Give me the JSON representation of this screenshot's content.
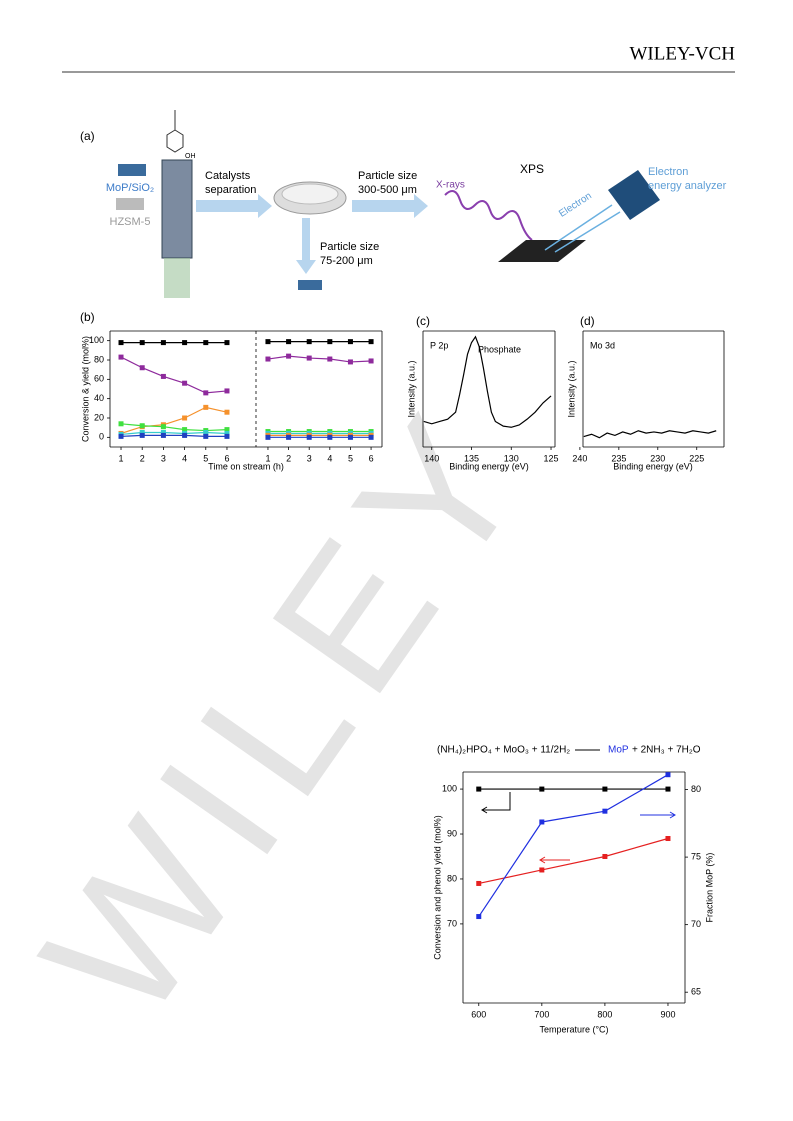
{
  "header": {
    "publisher": "WILEY-VCH"
  },
  "watermark": "WILEY",
  "figure_a": {
    "label": "(a)",
    "catalyst": "MoP/SiO₂",
    "zeolite": "HZSM-5",
    "oh": "OH",
    "step1": [
      "Catalysts",
      "separation"
    ],
    "step2": [
      "Particle size",
      "300-500 μm"
    ],
    "step3": [
      "Particle size",
      "75-200 μm"
    ],
    "xps": "XPS",
    "xrays": "X-rays",
    "electron": "Electron",
    "analyzer": [
      "Electron",
      "energy analyzer"
    ]
  },
  "equation": {
    "reactants": "(NH₄)₂HPO₄ + MoO₃ + 11/2H₂",
    "product": "MoP",
    "rest": "+ 2NH₃ + 7H₂O"
  },
  "chart_data": [
    {
      "type": "line",
      "panel": "(b)",
      "ylabel": "Conversion & yield (mol%)",
      "xlabel": "Time on stream (h)",
      "markers": true,
      "x": [
        1,
        2,
        3,
        4,
        5,
        6
      ],
      "xlim": [
        0.48,
        7.37
      ],
      "xticks": [
        1,
        2,
        3,
        4,
        5,
        6
      ],
      "ylim": [
        -10,
        110
      ],
      "yticks": [
        0,
        20,
        40,
        60,
        80,
        100
      ],
      "series": [
        {
          "color": "#000000",
          "values": [
            98,
            98,
            98,
            98,
            98,
            98
          ]
        },
        {
          "color": "#8e2a9c",
          "values": [
            83,
            72,
            63,
            56,
            46,
            48
          ]
        },
        {
          "color": "#f5912c",
          "values": [
            4,
            11,
            13,
            20,
            31,
            26
          ]
        },
        {
          "color": "#3fe03f",
          "values": [
            14,
            12,
            11,
            8,
            7,
            8
          ]
        },
        {
          "color": "#36cccc",
          "values": [
            3,
            5,
            5,
            4,
            5,
            4
          ]
        },
        {
          "color": "#2040c0",
          "values": [
            1,
            2,
            2,
            2,
            1,
            1
          ]
        }
      ]
    },
    {
      "type": "line",
      "markers": true,
      "x": [
        1,
        2,
        3,
        4,
        5,
        6
      ],
      "xlim": [
        0.42,
        6.53
      ],
      "xticks": [
        1,
        2,
        3,
        4,
        5,
        6
      ],
      "ylim": [
        -10,
        110
      ],
      "series": [
        {
          "color": "#000000",
          "values": [
            99,
            99,
            99,
            99,
            99,
            99
          ]
        },
        {
          "color": "#8e2a9c",
          "values": [
            81,
            84,
            82,
            81,
            78,
            79
          ]
        },
        {
          "color": "#3fe03f",
          "values": [
            6,
            6,
            6,
            6,
            6,
            6
          ]
        },
        {
          "color": "#36cccc",
          "values": [
            4,
            4,
            4,
            4,
            4,
            4
          ]
        },
        {
          "color": "#f5912c",
          "values": [
            2,
            2,
            2,
            2,
            2,
            2
          ]
        },
        {
          "color": "#2040c0",
          "values": [
            0,
            0,
            0,
            0,
            0,
            0
          ]
        }
      ]
    },
    {
      "type": "line",
      "panel": "(c)",
      "ylabel": "Intensity (a.u.)",
      "xlabel": "Binding energy (eV)",
      "annotations": [
        "P 2p",
        "Phosphate"
      ],
      "x": [
        141,
        140,
        139,
        138,
        137,
        136.5,
        136,
        135.5,
        135,
        134.5,
        134,
        133.5,
        133,
        132.5,
        132,
        131,
        130,
        129,
        128,
        127,
        126,
        125
      ],
      "xlim": [
        141.1,
        124.5
      ],
      "xticks": [
        140,
        135,
        130,
        125
      ],
      "ylim": [
        0,
        100
      ],
      "series": [
        {
          "color": "#000000",
          "values": [
            22,
            20,
            22,
            24,
            30,
            45,
            62,
            80,
            90,
            95,
            86,
            68,
            48,
            30,
            22,
            18,
            17,
            19,
            24,
            30,
            38,
            44
          ]
        }
      ]
    },
    {
      "type": "line",
      "panel": "(d)",
      "ylabel": "Intensity (a.u.)",
      "xlabel": "Binding energy (eV)",
      "annotations": [
        "Mo 3d"
      ],
      "x": [
        239.5,
        238.5,
        237.5,
        236.5,
        235.5,
        234.5,
        233.5,
        232.5,
        231.5,
        230.5,
        229.5,
        228.5,
        227.5,
        226.5,
        225.5,
        224.5,
        223.5,
        222.5
      ],
      "xlim": [
        239.6,
        221.5
      ],
      "xticks": [
        240,
        235,
        230,
        225
      ],
      "ylim": [
        0,
        100
      ],
      "series": [
        {
          "color": "#000000",
          "values": [
            9,
            11,
            8,
            12,
            10,
            13,
            11,
            14,
            12,
            13,
            12,
            14,
            13,
            12,
            14,
            13,
            12,
            14
          ]
        }
      ]
    },
    {
      "type": "line",
      "ylabel": "Conversion and phenol yield (mol%)",
      "y2label": "Fraction MoP (%)",
      "xlabel": "Temperature (°C)",
      "markers": true,
      "x": [
        600,
        700,
        800,
        900
      ],
      "xlim": [
        575,
        927
      ],
      "xticks": [
        600,
        700,
        800,
        900
      ],
      "ylim": [
        52.4,
        103.8
      ],
      "yticks": [
        70,
        80,
        90,
        100
      ],
      "y2lim": [
        64.2,
        81.3
      ],
      "y2ticks": [
        65,
        70,
        75,
        80
      ],
      "series": [
        {
          "color": "#000000",
          "values": [
            100,
            100,
            100,
            100
          ]
        },
        {
          "color": "#e52020",
          "values": [
            79,
            82,
            85,
            89
          ]
        },
        {
          "color": "#2030e0",
          "axis": "y2",
          "values": [
            70.6,
            77.6,
            78.4,
            81.1
          ]
        }
      ]
    }
  ]
}
